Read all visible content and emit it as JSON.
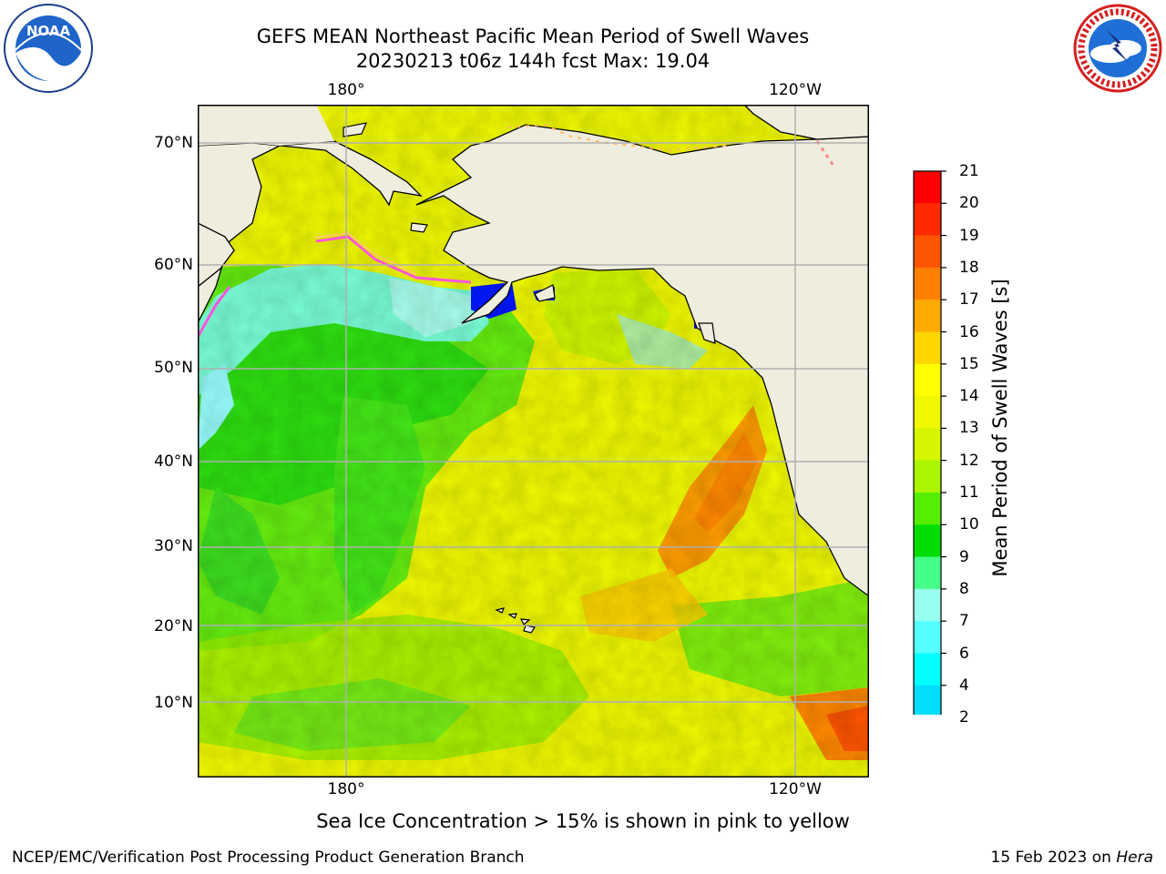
{
  "title": {
    "line1": "GEFS MEAN Northeast Pacific Mean Period of Swell Waves",
    "line2": "20230213 t06z 144h fcst   Max: 19.04"
  },
  "logos": {
    "left": {
      "icon": "noaa-logo-icon",
      "text": "NOAA"
    },
    "right": {
      "icon": "national-weather-service-logo-icon"
    }
  },
  "map": {
    "lon_labels": [
      "180°",
      "120°W"
    ],
    "lat_labels": [
      "70°N",
      "60°N",
      "50°N",
      "40°N",
      "30°N",
      "20°N",
      "10°N"
    ],
    "land_color": "#efedde",
    "grid_color": "#b0b0b0"
  },
  "colorbar": {
    "label": "Mean Period of Swell Waves [s]",
    "ticks": [
      "21",
      "20",
      "19",
      "18",
      "17",
      "16",
      "15",
      "14",
      "13",
      "12",
      "11",
      "10",
      "9",
      "8",
      "7",
      "6",
      "4",
      "2"
    ],
    "colors": [
      "#ff0000",
      "#ff2a00",
      "#ff5500",
      "#ff8000",
      "#ffaa00",
      "#ffd500",
      "#ffff00",
      "#f0f800",
      "#d5f500",
      "#aaf500",
      "#55ee00",
      "#00dd00",
      "#44ff88",
      "#99ffee",
      "#55ffff",
      "#00ffff",
      "#00ddff",
      "#0066ff"
    ],
    "extend_color": "#0000ff"
  },
  "footer": {
    "caption": "Sea Ice Concentration > 15% is shown in pink to yellow",
    "org": "NCEP/EMC/Verification Post Processing Product Generation Branch",
    "date_text": "15 Feb 2023 on ",
    "date_machine": "Hera"
  }
}
